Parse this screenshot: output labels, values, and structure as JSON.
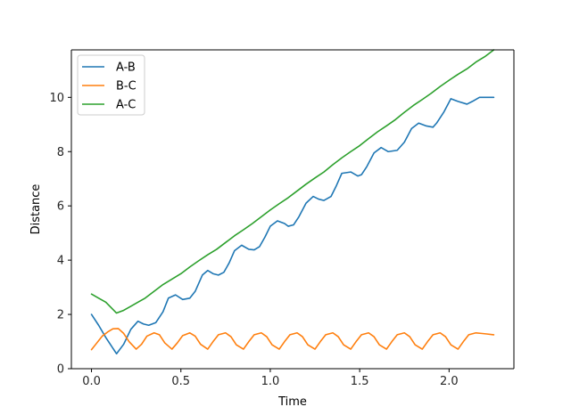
{
  "chart_data": {
    "type": "line",
    "title": "",
    "xlabel": "Time",
    "ylabel": "Distance",
    "xlim": [
      -0.1125,
      2.3625
    ],
    "ylim": [
      0,
      11.75
    ],
    "x_ticks": [
      0.0,
      0.5,
      1.0,
      1.5,
      2.0
    ],
    "x_tick_labels": [
      "0.0",
      "0.5",
      "1.0",
      "1.5",
      "2.0"
    ],
    "y_ticks": [
      0,
      2,
      4,
      6,
      8,
      10
    ],
    "y_tick_labels": [
      "0",
      "2",
      "4",
      "6",
      "8",
      "10"
    ],
    "grid": false,
    "legend_position": "top-left",
    "series": [
      {
        "name": "A-B",
        "color": "#1f77b4",
        "x": [
          0.0,
          0.04,
          0.08,
          0.11,
          0.14,
          0.18,
          0.22,
          0.26,
          0.29,
          0.32,
          0.36,
          0.4,
          0.43,
          0.47,
          0.51,
          0.55,
          0.58,
          0.62,
          0.65,
          0.68,
          0.71,
          0.74,
          0.77,
          0.8,
          0.84,
          0.88,
          0.91,
          0.94,
          0.97,
          1.0,
          1.04,
          1.08,
          1.1,
          1.13,
          1.16,
          1.2,
          1.24,
          1.27,
          1.3,
          1.34,
          1.37,
          1.4,
          1.45,
          1.49,
          1.51,
          1.54,
          1.58,
          1.62,
          1.66,
          1.71,
          1.75,
          1.79,
          1.83,
          1.87,
          1.91,
          1.93,
          1.97,
          2.01,
          2.05,
          2.1,
          2.13,
          2.17,
          2.21,
          2.25
        ],
        "values": [
          2.0,
          1.6,
          1.15,
          0.85,
          0.55,
          0.9,
          1.45,
          1.75,
          1.65,
          1.6,
          1.7,
          2.1,
          2.6,
          2.72,
          2.55,
          2.6,
          2.85,
          3.45,
          3.62,
          3.5,
          3.45,
          3.55,
          3.9,
          4.35,
          4.55,
          4.4,
          4.38,
          4.5,
          4.85,
          5.25,
          5.45,
          5.35,
          5.25,
          5.3,
          5.6,
          6.1,
          6.35,
          6.25,
          6.2,
          6.35,
          6.75,
          7.2,
          7.25,
          7.1,
          7.15,
          7.45,
          7.95,
          8.15,
          8.0,
          8.05,
          8.35,
          8.85,
          9.05,
          8.95,
          8.9,
          9.05,
          9.45,
          9.95,
          9.85,
          9.75,
          9.85,
          10.0,
          10.0,
          10.0
        ]
      },
      {
        "name": "B-C",
        "color": "#ff7f0e",
        "x": [
          0.0,
          0.03,
          0.06,
          0.09,
          0.12,
          0.15,
          0.18,
          0.21,
          0.25,
          0.28,
          0.31,
          0.35,
          0.38,
          0.41,
          0.45,
          0.48,
          0.51,
          0.55,
          0.58,
          0.61,
          0.65,
          0.68,
          0.71,
          0.75,
          0.78,
          0.81,
          0.85,
          0.88,
          0.91,
          0.95,
          0.98,
          1.01,
          1.05,
          1.08,
          1.11,
          1.15,
          1.18,
          1.21,
          1.25,
          1.28,
          1.31,
          1.35,
          1.38,
          1.41,
          1.45,
          1.48,
          1.51,
          1.55,
          1.58,
          1.61,
          1.65,
          1.68,
          1.71,
          1.75,
          1.78,
          1.81,
          1.85,
          1.88,
          1.91,
          1.95,
          1.98,
          2.01,
          2.05,
          2.08,
          2.11,
          2.15,
          2.18,
          2.21,
          2.25
        ],
        "values": [
          0.7,
          0.95,
          1.2,
          1.35,
          1.47,
          1.48,
          1.3,
          1.0,
          0.72,
          0.9,
          1.2,
          1.32,
          1.25,
          0.95,
          0.72,
          0.95,
          1.22,
          1.32,
          1.2,
          0.9,
          0.72,
          1.0,
          1.25,
          1.32,
          1.18,
          0.88,
          0.72,
          1.0,
          1.25,
          1.32,
          1.18,
          0.88,
          0.72,
          1.0,
          1.25,
          1.32,
          1.18,
          0.88,
          0.72,
          1.0,
          1.25,
          1.32,
          1.18,
          0.88,
          0.72,
          1.0,
          1.25,
          1.32,
          1.18,
          0.88,
          0.72,
          1.0,
          1.25,
          1.32,
          1.18,
          0.88,
          0.72,
          1.0,
          1.25,
          1.32,
          1.18,
          0.88,
          0.72,
          1.0,
          1.25,
          1.32,
          1.3,
          1.28,
          1.25
        ]
      },
      {
        "name": "A-C",
        "color": "#2ca02c",
        "x": [
          0.0,
          0.04,
          0.08,
          0.11,
          0.14,
          0.18,
          0.22,
          0.26,
          0.3,
          0.35,
          0.4,
          0.45,
          0.5,
          0.55,
          0.6,
          0.65,
          0.7,
          0.75,
          0.8,
          0.85,
          0.9,
          0.95,
          1.0,
          1.05,
          1.1,
          1.15,
          1.2,
          1.25,
          1.3,
          1.35,
          1.4,
          1.45,
          1.5,
          1.55,
          1.6,
          1.65,
          1.7,
          1.75,
          1.8,
          1.85,
          1.9,
          1.95,
          2.0,
          2.05,
          2.1,
          2.15,
          2.2,
          2.25
        ],
        "values": [
          2.75,
          2.6,
          2.45,
          2.25,
          2.05,
          2.15,
          2.3,
          2.45,
          2.6,
          2.85,
          3.1,
          3.3,
          3.5,
          3.75,
          3.98,
          4.2,
          4.4,
          4.65,
          4.9,
          5.12,
          5.35,
          5.6,
          5.85,
          6.08,
          6.3,
          6.55,
          6.8,
          7.03,
          7.25,
          7.52,
          7.77,
          8.0,
          8.22,
          8.48,
          8.73,
          8.95,
          9.18,
          9.45,
          9.7,
          9.92,
          10.15,
          10.4,
          10.63,
          10.85,
          11.05,
          11.3,
          11.5,
          11.75
        ]
      }
    ]
  }
}
